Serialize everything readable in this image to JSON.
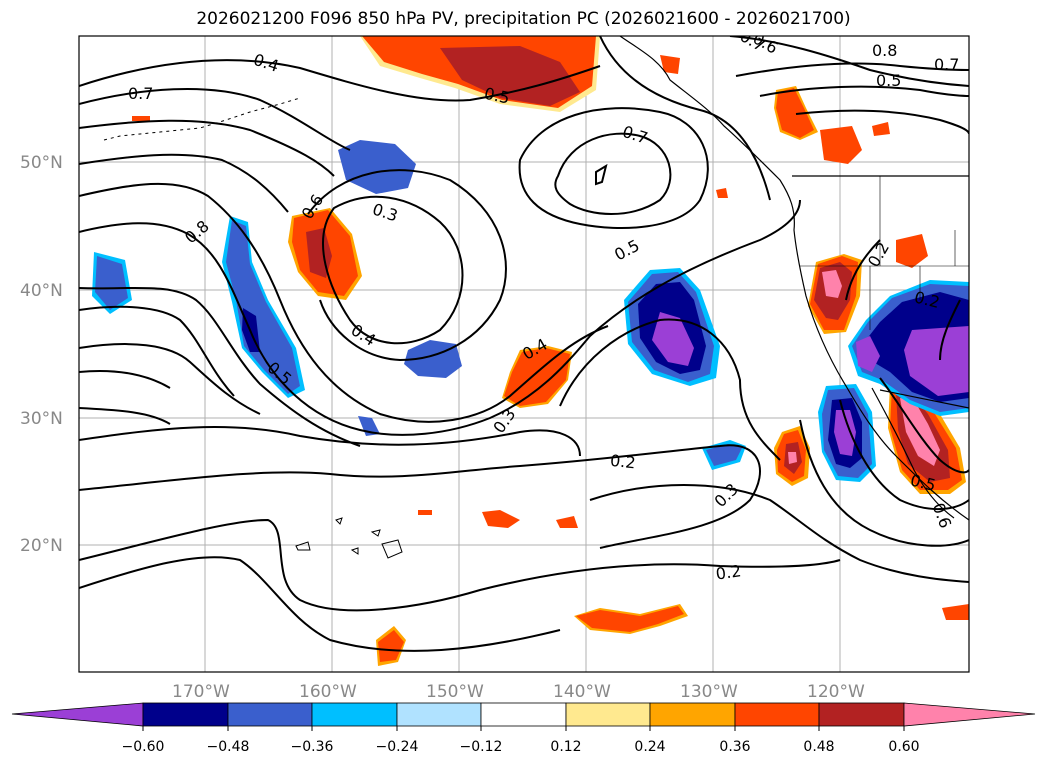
{
  "title": "2026021200 F096 850 hPa PV, precipitation PC (2026021600 - 2026021700)",
  "map": {
    "lat_labels": [
      "50°N",
      "40°N",
      "30°N",
      "20°N"
    ],
    "lon_labels": [
      "170°W",
      "160°W",
      "150°W",
      "140°W",
      "130°W",
      "120°W"
    ],
    "contour_labels": [
      "0.4",
      "0.7",
      "0.8",
      "0.6",
      "0.3",
      "0.4",
      "0.5",
      "0.5",
      "0.7",
      "0.5",
      "0.4",
      "0.3",
      "0.2",
      "0.3",
      "0.2",
      "0.7",
      "0.6",
      "0.8",
      "0.5",
      "0.7",
      "0.2",
      "0.2",
      "0.5",
      "0.6"
    ]
  },
  "colorbar": {
    "tick_labels": [
      "−0.60",
      "−0.48",
      "−0.36",
      "−0.24",
      "−0.12",
      "0.12",
      "0.24",
      "0.36",
      "0.48",
      "0.60"
    ],
    "colors": [
      "#9b3fd6",
      "#00008b",
      "#3a5fcd",
      "#00bfff",
      "#b0e2ff",
      "#ffffff",
      "#ffe98f",
      "#ffa500",
      "#ff4500",
      "#b22222",
      "#ff82ab"
    ]
  }
}
